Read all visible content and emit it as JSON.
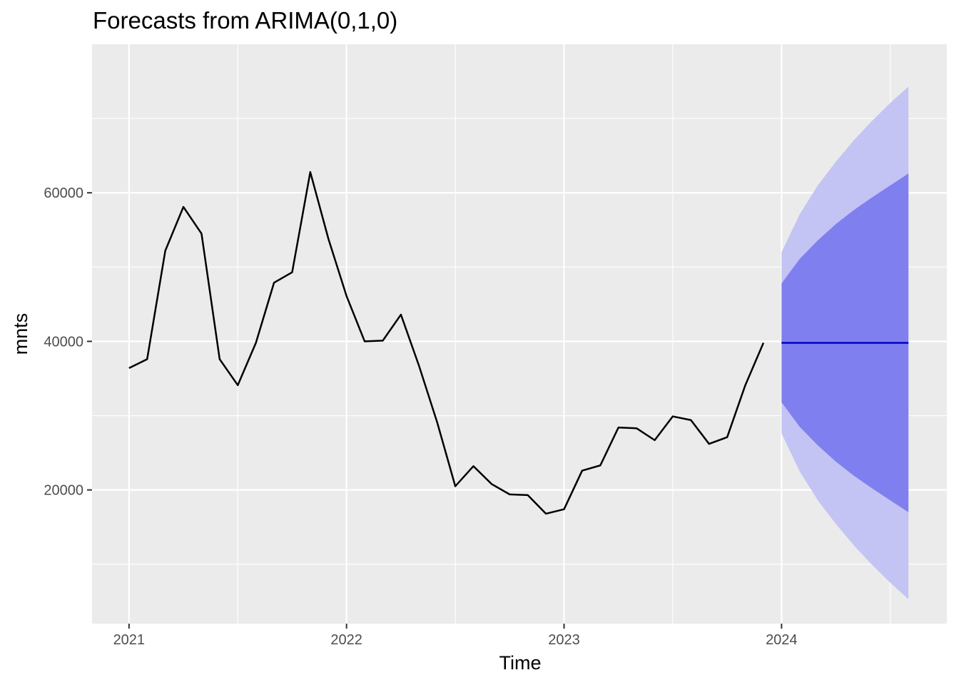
{
  "chart_data": {
    "type": "line",
    "title": "Forecasts from ARIMA(0,1,0)",
    "xlabel": "Time",
    "ylabel": "mnts",
    "xlim": [
      2020.83,
      2024.76
    ],
    "ylim": [
      2000,
      80000
    ],
    "x_ticks": [
      2021,
      2022,
      2023,
      2024
    ],
    "x_tick_labels": [
      "2021",
      "2022",
      "2023",
      "2024"
    ],
    "y_ticks": [
      20000,
      40000,
      60000
    ],
    "y_tick_labels": [
      "20000",
      "40000",
      "60000"
    ],
    "grid": true,
    "legend": "none",
    "colors": {
      "panel": "#ebebeb",
      "grid": "#ffffff",
      "series": "#000000",
      "forecast_mean": "#0000cc",
      "band_80": "#7f7fef",
      "band_95": "#c3c3f4"
    },
    "observed": {
      "x": [
        2021.0,
        2021.0833,
        2021.1667,
        2021.25,
        2021.3333,
        2021.4167,
        2021.5,
        2021.5833,
        2021.6667,
        2021.75,
        2021.8333,
        2021.9167,
        2022.0,
        2022.0833,
        2022.1667,
        2022.25,
        2022.3333,
        2022.4167,
        2022.5,
        2022.5833,
        2022.6667,
        2022.75,
        2022.8333,
        2022.9167,
        2023.0,
        2023.0833,
        2023.1667,
        2023.25,
        2023.3333,
        2023.4167,
        2023.5,
        2023.5833,
        2023.6667,
        2023.75,
        2023.8333,
        2023.9167
      ],
      "y": [
        36400,
        37600,
        52200,
        58100,
        54500,
        37600,
        34100,
        39800,
        47900,
        49300,
        62800,
        53800,
        46100,
        40000,
        40100,
        43600,
        36700,
        29100,
        20500,
        23200,
        20800,
        19400,
        19300,
        16800,
        17400,
        22600,
        23300,
        28400,
        28300,
        26700,
        29900,
        29400,
        26200,
        27100,
        34100,
        39800
      ]
    },
    "forecast": {
      "x": [
        2024.0,
        2024.0833,
        2024.1667,
        2024.25,
        2024.3333,
        2024.4167,
        2024.5,
        2024.5833
      ],
      "mean": [
        39800,
        39800,
        39800,
        39800,
        39800,
        39800,
        39800,
        39800
      ],
      "lo80": [
        31800,
        28500,
        26000,
        23800,
        21900,
        20200,
        18600,
        17000
      ],
      "hi80": [
        47800,
        51100,
        53600,
        55800,
        57700,
        59400,
        61000,
        62600
      ],
      "lo95": [
        27600,
        22500,
        18600,
        15400,
        12500,
        9900,
        7500,
        5300
      ],
      "hi95": [
        52000,
        57100,
        61000,
        64200,
        67100,
        69700,
        72100,
        74300
      ]
    }
  }
}
